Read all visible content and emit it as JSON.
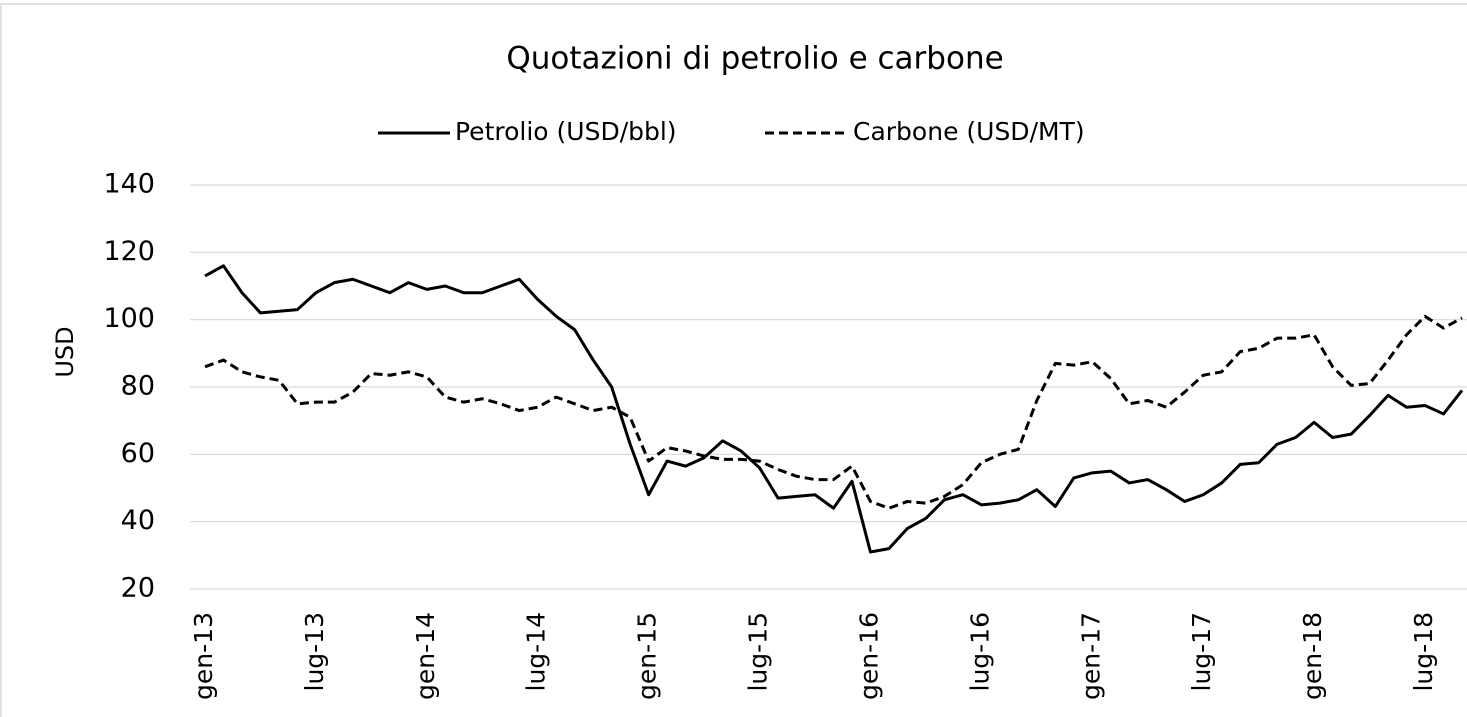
{
  "chart_data": {
    "type": "line",
    "title": "Quotazioni di petrolio e carbone",
    "y_label": "USD",
    "categories": [
      "gen-13",
      null,
      null,
      null,
      null,
      null,
      "lug-13",
      null,
      null,
      null,
      null,
      null,
      "gen-14",
      null,
      null,
      null,
      null,
      null,
      "lug-14",
      null,
      null,
      null,
      null,
      null,
      "gen-15",
      null,
      null,
      null,
      null,
      null,
      "lug-15",
      null,
      null,
      null,
      null,
      null,
      "gen-16",
      null,
      null,
      null,
      null,
      null,
      "lug-16",
      null,
      null,
      null,
      null,
      null,
      "gen-17",
      null,
      null,
      null,
      null,
      null,
      "lug-17",
      null,
      null,
      null,
      null,
      null,
      "gen-18",
      null,
      null,
      null,
      null,
      null,
      "lug-18",
      null,
      null
    ],
    "series": [
      {
        "name": "Petrolio (USD/bbl)",
        "color": "#000000",
        "dash": "solid",
        "values": [
          113,
          116,
          108,
          102,
          102.5,
          103,
          108,
          111,
          112,
          110,
          108,
          111,
          109,
          110,
          108,
          108,
          110,
          112,
          106,
          101,
          97,
          88,
          80,
          63,
          48,
          58,
          56.5,
          59,
          64,
          61,
          56,
          47,
          47.5,
          48,
          44,
          52,
          31,
          32,
          38,
          41,
          46.5,
          48,
          45,
          45.5,
          46.5,
          49.5,
          44.5,
          53,
          54.5,
          55,
          51.5,
          52.5,
          49.5,
          46,
          48,
          51.5,
          57,
          57.5,
          63,
          65,
          69.5,
          65,
          66,
          71.5,
          77.5,
          74,
          74.5,
          72,
          79
        ]
      },
      {
        "name": "Carbone (USD/MT)",
        "color": "#000000",
        "dash": "dashed",
        "values": [
          86,
          88,
          84.5,
          83,
          82,
          75,
          75.5,
          75.5,
          78.5,
          84,
          83.5,
          84.5,
          83,
          77,
          75.5,
          76.5,
          75,
          73,
          74,
          77,
          75,
          73,
          74,
          71,
          58,
          62,
          61,
          59.5,
          58.5,
          58.5,
          58,
          55.5,
          53.5,
          52.5,
          52.5,
          56.5,
          46,
          44,
          46,
          45.5,
          47.5,
          51,
          57.5,
          60,
          61.5,
          76,
          87,
          86.5,
          87.5,
          82.5,
          75,
          76,
          74,
          78.5,
          83.5,
          84.5,
          90.5,
          91.5,
          94.5,
          94.5,
          95.5,
          86,
          80.5,
          81,
          88,
          95.5,
          101,
          97.5,
          100.5
        ]
      }
    ],
    "ylim": [
      20,
      140
    ],
    "yticks": [
      20,
      40,
      60,
      80,
      100,
      120,
      140
    ],
    "grid": true,
    "legend": "top"
  }
}
